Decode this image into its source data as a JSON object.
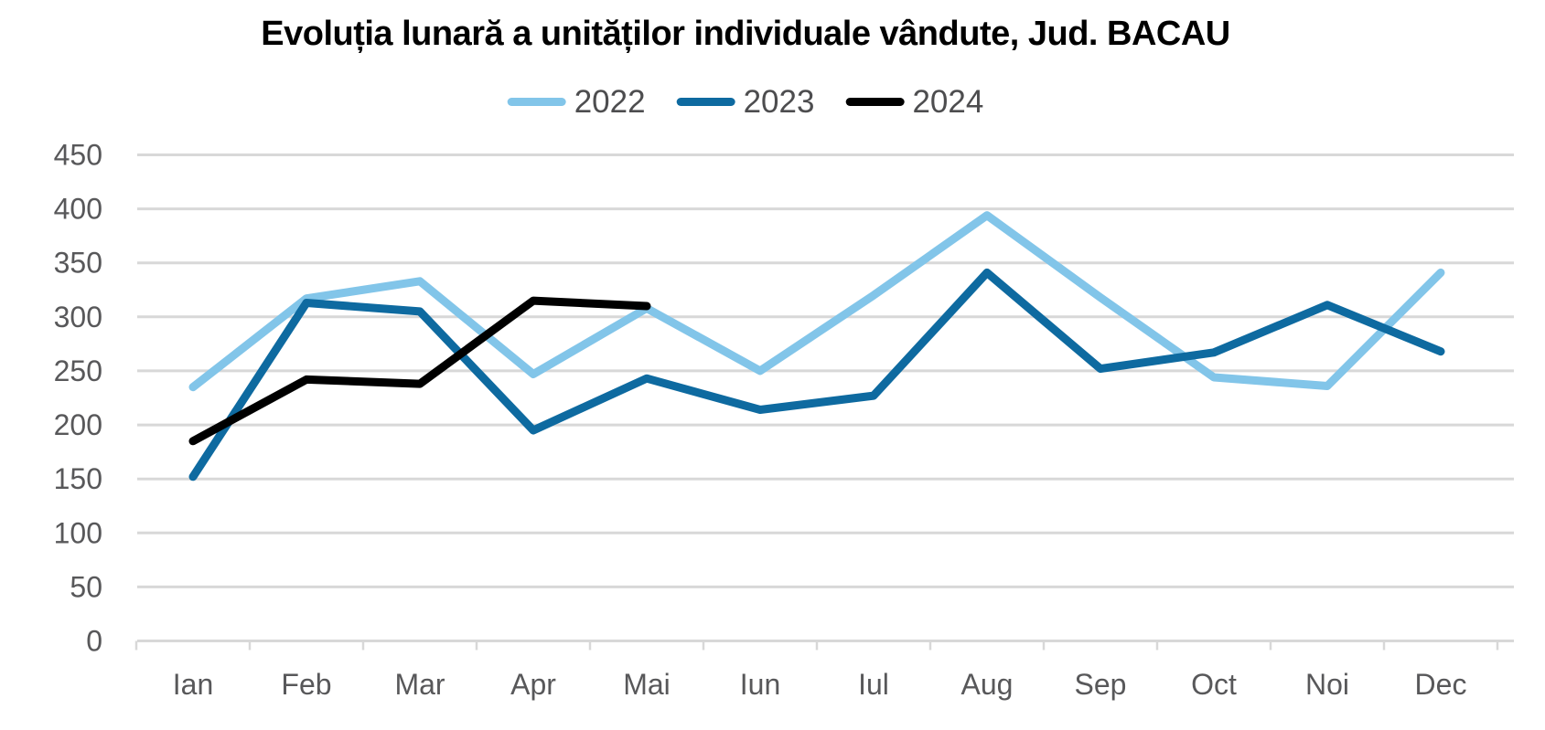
{
  "title": "Evoluția lunară a unităților individuale vândute, Jud. BACAU",
  "chart_data": {
    "type": "line",
    "title": "Evoluția lunară a unităților individuale vândute, Jud. BACAU",
    "categories": [
      "Ian",
      "Feb",
      "Mar",
      "Apr",
      "Mai",
      "Iun",
      "Iul",
      "Aug",
      "Sep",
      "Oct",
      "Noi",
      "Dec"
    ],
    "series": [
      {
        "name": "2022",
        "color": "#82C5E9",
        "values": [
          235,
          317,
          333,
          247,
          308,
          250,
          320,
          394,
          318,
          244,
          236,
          341
        ]
      },
      {
        "name": "2023",
        "color": "#0E6AA0",
        "values": [
          152,
          313,
          305,
          195,
          243,
          214,
          227,
          341,
          252,
          267,
          311,
          268
        ]
      },
      {
        "name": "2024",
        "color": "#000000",
        "values": [
          185,
          242,
          238,
          315,
          310,
          null,
          null,
          null,
          null,
          null,
          null,
          null
        ]
      }
    ],
    "ylim": [
      0,
      450
    ],
    "ytick_step": 50,
    "yticks": [
      0,
      50,
      100,
      150,
      200,
      250,
      300,
      350,
      400,
      450
    ],
    "grid": "horizontal",
    "legend_position": "top",
    "xlabel": "",
    "ylabel": ""
  },
  "colors": {
    "background": "#FFFFFF",
    "gridline": "#D8D8D8",
    "axis_text": "#58585A",
    "legend_text": "#4D4D4F",
    "title_text": "#000000"
  }
}
